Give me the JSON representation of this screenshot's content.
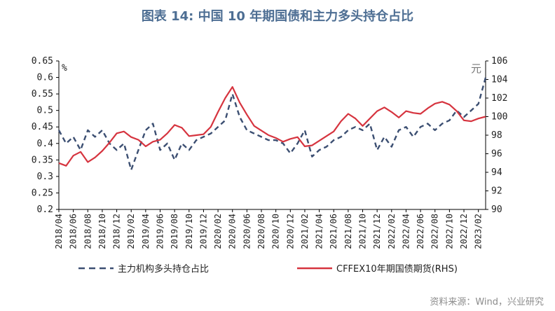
{
  "title": "图表 14: 中国 10 年期国债和主力多头持仓占比",
  "source": "资料来源：Wind，兴业研究",
  "chart_data": {
    "type": "line",
    "left_unit": "%",
    "right_unit": "元",
    "y_left": {
      "range": [
        0.2,
        0.65
      ],
      "ticks": [
        "0.65",
        "0.6",
        "0.55",
        "0.5",
        "0.45",
        "0.4",
        "0.35",
        "0.3",
        "0.25",
        "0.2"
      ]
    },
    "y_right": {
      "range": [
        90,
        106
      ],
      "ticks": [
        "106",
        "104",
        "102",
        "100",
        "98",
        "96",
        "94",
        "92",
        "90"
      ]
    },
    "x_ticks": [
      "2018/04",
      "2018/06",
      "2018/08",
      "2018/10",
      "2018/12",
      "2019/02",
      "2019/04",
      "2019/06",
      "2019/08",
      "2019/10",
      "2019/12",
      "2020/02",
      "2020/04",
      "2020/06",
      "2020/08",
      "2020/10",
      "2020/12",
      "2021/02",
      "2021/04",
      "2021/06",
      "2021/08",
      "2021/10",
      "2021/12",
      "2022/02",
      "2022/04",
      "2022/06",
      "2022/08",
      "2022/10",
      "2022/12",
      "2023/02"
    ],
    "series": [
      {
        "name": "主力机构多头持仓占比",
        "axis": "left",
        "color": "#3c4f72",
        "style": "dashed",
        "points": [
          [
            "2018/04",
            0.44
          ],
          [
            "2018/05",
            0.4
          ],
          [
            "2018/06",
            0.42
          ],
          [
            "2018/07",
            0.38
          ],
          [
            "2018/08",
            0.44
          ],
          [
            "2018/09",
            0.42
          ],
          [
            "2018/10",
            0.44
          ],
          [
            "2018/11",
            0.4
          ],
          [
            "2018/12",
            0.38
          ],
          [
            "2019/01",
            0.4
          ],
          [
            "2019/02",
            0.32
          ],
          [
            "2019/03",
            0.38
          ],
          [
            "2019/04",
            0.44
          ],
          [
            "2019/05",
            0.46
          ],
          [
            "2019/06",
            0.38
          ],
          [
            "2019/07",
            0.4
          ],
          [
            "2019/08",
            0.35
          ],
          [
            "2019/09",
            0.4
          ],
          [
            "2019/10",
            0.38
          ],
          [
            "2019/11",
            0.41
          ],
          [
            "2019/12",
            0.42
          ],
          [
            "2020/01",
            0.43
          ],
          [
            "2020/02",
            0.45
          ],
          [
            "2020/03",
            0.47
          ],
          [
            "2020/04",
            0.55
          ],
          [
            "2020/05",
            0.48
          ],
          [
            "2020/06",
            0.44
          ],
          [
            "2020/07",
            0.43
          ],
          [
            "2020/08",
            0.42
          ],
          [
            "2020/09",
            0.41
          ],
          [
            "2020/10",
            0.41
          ],
          [
            "2020/11",
            0.4
          ],
          [
            "2020/12",
            0.37
          ],
          [
            "2021/01",
            0.4
          ],
          [
            "2021/02",
            0.44
          ],
          [
            "2021/03",
            0.36
          ],
          [
            "2021/04",
            0.38
          ],
          [
            "2021/05",
            0.39
          ],
          [
            "2021/06",
            0.41
          ],
          [
            "2021/07",
            0.42
          ],
          [
            "2021/08",
            0.44
          ],
          [
            "2021/09",
            0.45
          ],
          [
            "2021/10",
            0.44
          ],
          [
            "2021/11",
            0.46
          ],
          [
            "2021/12",
            0.38
          ],
          [
            "2022/01",
            0.42
          ],
          [
            "2022/02",
            0.39
          ],
          [
            "2022/03",
            0.44
          ],
          [
            "2022/04",
            0.45
          ],
          [
            "2022/05",
            0.42
          ],
          [
            "2022/06",
            0.45
          ],
          [
            "2022/07",
            0.46
          ],
          [
            "2022/08",
            0.44
          ],
          [
            "2022/09",
            0.46
          ],
          [
            "2022/10",
            0.47
          ],
          [
            "2022/11",
            0.5
          ],
          [
            "2022/12",
            0.48
          ],
          [
            "2023/01",
            0.5
          ],
          [
            "2023/02",
            0.52
          ],
          [
            "2023/03",
            0.6
          ]
        ]
      },
      {
        "name": "CFFEX10年期国债期货(RHS)",
        "axis": "right",
        "color": "#d6343f",
        "style": "solid",
        "points": [
          [
            "2018/04",
            95.0
          ],
          [
            "2018/05",
            94.7
          ],
          [
            "2018/06",
            95.8
          ],
          [
            "2018/07",
            96.2
          ],
          [
            "2018/08",
            95.1
          ],
          [
            "2018/09",
            95.6
          ],
          [
            "2018/10",
            96.3
          ],
          [
            "2018/11",
            97.2
          ],
          [
            "2018/12",
            98.2
          ],
          [
            "2019/01",
            98.4
          ],
          [
            "2019/02",
            97.8
          ],
          [
            "2019/03",
            97.5
          ],
          [
            "2019/04",
            96.8
          ],
          [
            "2019/05",
            97.3
          ],
          [
            "2019/06",
            97.5
          ],
          [
            "2019/07",
            98.2
          ],
          [
            "2019/08",
            99.1
          ],
          [
            "2019/09",
            98.8
          ],
          [
            "2019/10",
            97.9
          ],
          [
            "2019/11",
            98.0
          ],
          [
            "2019/12",
            98.1
          ],
          [
            "2020/01",
            98.9
          ],
          [
            "2020/02",
            100.5
          ],
          [
            "2020/03",
            102.0
          ],
          [
            "2020/04",
            103.2
          ],
          [
            "2020/05",
            101.5
          ],
          [
            "2020/06",
            100.2
          ],
          [
            "2020/07",
            99.0
          ],
          [
            "2020/08",
            98.5
          ],
          [
            "2020/09",
            98.0
          ],
          [
            "2020/10",
            97.7
          ],
          [
            "2020/11",
            97.3
          ],
          [
            "2020/12",
            97.6
          ],
          [
            "2021/01",
            97.8
          ],
          [
            "2021/02",
            96.8
          ],
          [
            "2021/03",
            96.9
          ],
          [
            "2021/04",
            97.4
          ],
          [
            "2021/05",
            97.9
          ],
          [
            "2021/06",
            98.4
          ],
          [
            "2021/07",
            99.5
          ],
          [
            "2021/08",
            100.3
          ],
          [
            "2021/09",
            99.8
          ],
          [
            "2021/10",
            99.0
          ],
          [
            "2021/11",
            99.8
          ],
          [
            "2021/12",
            100.6
          ],
          [
            "2022/01",
            101.0
          ],
          [
            "2022/02",
            100.5
          ],
          [
            "2022/03",
            99.9
          ],
          [
            "2022/04",
            100.6
          ],
          [
            "2022/05",
            100.4
          ],
          [
            "2022/06",
            100.3
          ],
          [
            "2022/07",
            100.9
          ],
          [
            "2022/08",
            101.4
          ],
          [
            "2022/09",
            101.6
          ],
          [
            "2022/10",
            101.3
          ],
          [
            "2022/11",
            100.6
          ],
          [
            "2022/12",
            99.6
          ],
          [
            "2023/01",
            99.5
          ],
          [
            "2023/02",
            99.8
          ],
          [
            "2023/03",
            100.0
          ]
        ]
      }
    ],
    "legend_position": "bottom",
    "grid": false
  }
}
